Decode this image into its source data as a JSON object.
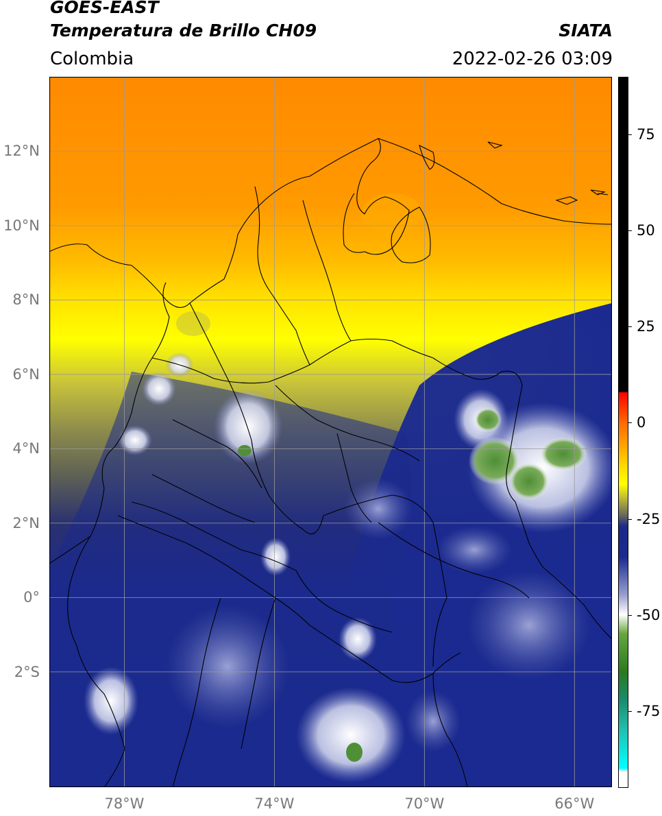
{
  "header": {
    "satellite": "GOES-EAST",
    "product": "Temperatura de Brillo CH09",
    "organization": "SIATA",
    "region": "Colombia",
    "timestamp": "2022-02-26 03:09"
  },
  "map": {
    "lon_range": [
      -80,
      -65
    ],
    "lat_range": [
      -5.1,
      14.0
    ],
    "lat_ticks": [
      {
        "value": 12,
        "label": "12°N"
      },
      {
        "value": 10,
        "label": "10°N"
      },
      {
        "value": 8,
        "label": "8°N"
      },
      {
        "value": 6,
        "label": "6°N"
      },
      {
        "value": 4,
        "label": "4°N"
      },
      {
        "value": 2,
        "label": "2°N"
      },
      {
        "value": 0,
        "label": "0°"
      },
      {
        "value": -2,
        "label": "2°S"
      }
    ],
    "lon_ticks": [
      {
        "value": -78,
        "label": "78°W"
      },
      {
        "value": -74,
        "label": "74°W"
      },
      {
        "value": -70,
        "label": "70°W"
      },
      {
        "value": -66,
        "label": "66°W"
      }
    ],
    "gridlines": true,
    "grid_color": "#9a9a9a",
    "border_color": "#000000"
  },
  "colorbar": {
    "vmin": -95,
    "vmax": 90,
    "ticks": [
      {
        "value": 75,
        "label": "75"
      },
      {
        "value": 50,
        "label": "50"
      },
      {
        "value": 25,
        "label": "25"
      },
      {
        "value": 0,
        "label": "0"
      },
      {
        "value": -25,
        "label": "-25"
      },
      {
        "value": -50,
        "label": "-50"
      },
      {
        "value": -75,
        "label": "-75"
      }
    ],
    "stops": [
      {
        "value": 90,
        "color": "#000000"
      },
      {
        "value": 8,
        "color": "#000000"
      },
      {
        "value": 7.9,
        "color": "#ff0000"
      },
      {
        "value": 0,
        "color": "#ff6a00"
      },
      {
        "value": -5,
        "color": "#ff9a00"
      },
      {
        "value": -12,
        "color": "#ffe000"
      },
      {
        "value": -16,
        "color": "#ffff00"
      },
      {
        "value": -20,
        "color": "#b7b33a"
      },
      {
        "value": -24,
        "color": "#6a6a5a"
      },
      {
        "value": -27,
        "color": "#1a2a88"
      },
      {
        "value": -35,
        "color": "#1b2a90"
      },
      {
        "value": -45,
        "color": "#9aa0d0"
      },
      {
        "value": -50,
        "color": "#ffffff"
      },
      {
        "value": -55,
        "color": "#66a63c"
      },
      {
        "value": -65,
        "color": "#2a7a20"
      },
      {
        "value": -72,
        "color": "#1a8a6a"
      },
      {
        "value": -80,
        "color": "#20c0b0"
      },
      {
        "value": -90,
        "color": "#00ffff"
      },
      {
        "value": -91,
        "color": "#ffffff"
      },
      {
        "value": -95,
        "color": "#ffffff"
      }
    ]
  }
}
